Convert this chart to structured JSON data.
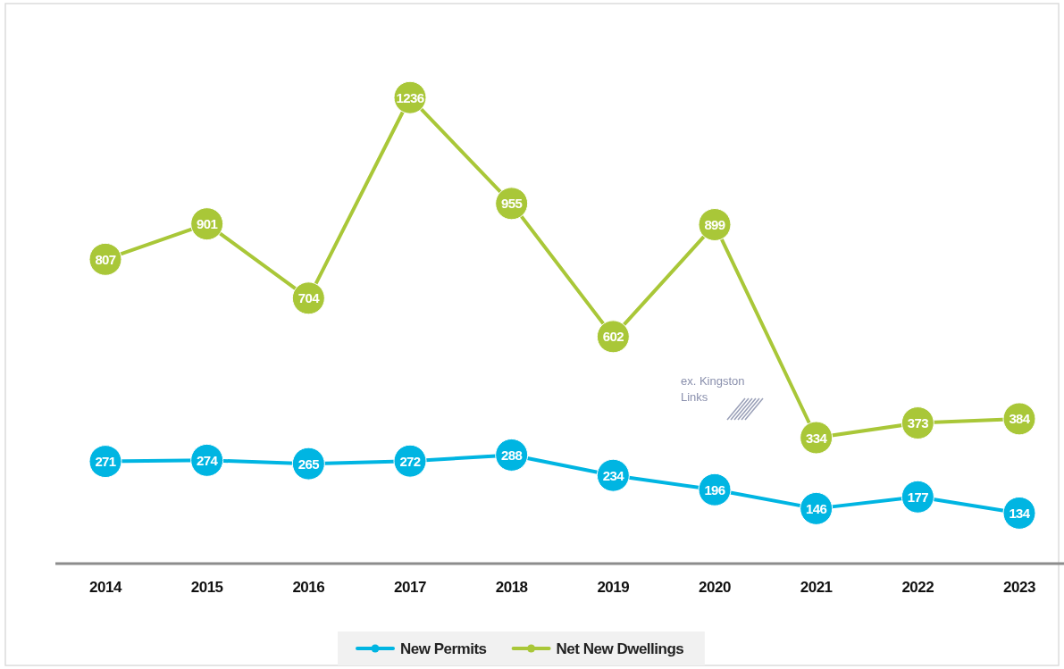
{
  "chart_data": {
    "type": "line",
    "categories": [
      "2014",
      "2015",
      "2016",
      "2017",
      "2018",
      "2019",
      "2020",
      "2021",
      "2022",
      "2023"
    ],
    "series": [
      {
        "name": "New Permits",
        "color": "#00b5e2",
        "values": [
          271,
          274,
          265,
          272,
          288,
          234,
          196,
          146,
          177,
          134
        ]
      },
      {
        "name": "Net New Dwellings",
        "color": "#a9c738",
        "values": [
          807,
          901,
          704,
          1236,
          955,
          602,
          899,
          334,
          373,
          384
        ]
      }
    ],
    "ylim": [
      0,
      1490
    ],
    "tick_labels": "x",
    "data_labels": true,
    "marker": "circle",
    "line_style": "solid",
    "legend": "bottom",
    "annotations": [
      "ex. Kingston Links"
    ]
  }
}
